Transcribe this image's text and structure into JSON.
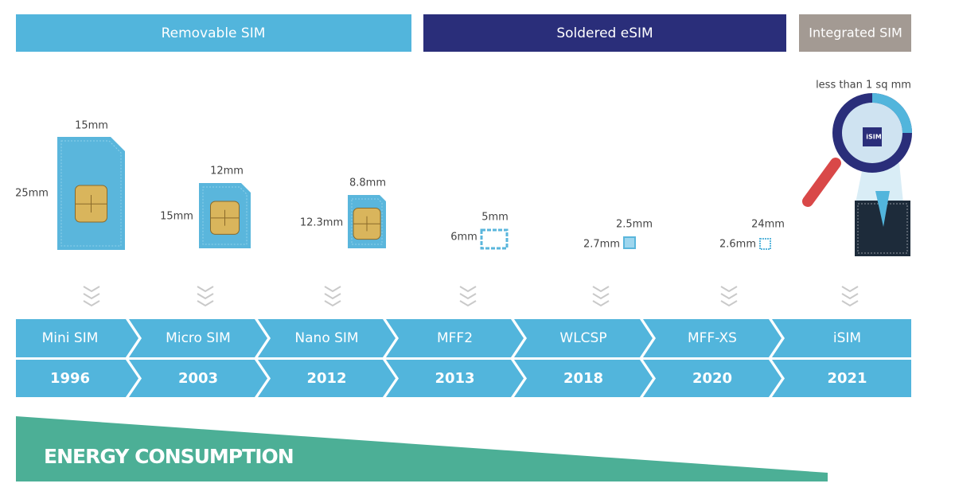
{
  "headers": [
    {
      "label": "Removable SIM"
    },
    {
      "label": "Soldered eSIM"
    },
    {
      "label": "Integrated SIM"
    }
  ],
  "items": [
    {
      "name": "Mini SIM",
      "year": "1996",
      "width_label": "15mm",
      "height_label": "25mm"
    },
    {
      "name": "Micro SIM",
      "year": "2003",
      "width_label": "12mm",
      "height_label": "15mm"
    },
    {
      "name": "Nano SIM",
      "year": "2012",
      "width_label": "8.8mm",
      "height_label": "12.3mm"
    },
    {
      "name": "MFF2",
      "year": "2013",
      "width_label": "5mm",
      "height_label": "6mm"
    },
    {
      "name": "WLCSP",
      "year": "2018",
      "width_label": "2.5mm",
      "height_label": "2.7mm"
    },
    {
      "name": "MFF-XS",
      "year": "2020",
      "width_label": "24mm",
      "height_label": "2.6mm"
    },
    {
      "name": "iSIM",
      "year": "2021",
      "note": "less than 1 sq mm",
      "chip_label": "iSIM"
    }
  ],
  "energy": {
    "label": "ENERGY CONSUMPTION"
  }
}
